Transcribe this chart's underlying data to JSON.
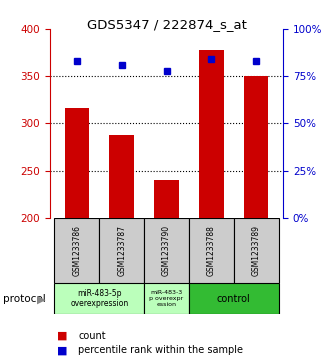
{
  "title": "GDS5347 / 222874_s_at",
  "samples": [
    "GSM1233786",
    "GSM1233787",
    "GSM1233790",
    "GSM1233788",
    "GSM1233789"
  ],
  "counts": [
    316,
    288,
    240,
    378,
    350
  ],
  "percentiles": [
    83,
    81,
    78,
    84,
    83
  ],
  "ylim_left": [
    200,
    400
  ],
  "ylim_right": [
    0,
    100
  ],
  "yticks_left": [
    200,
    250,
    300,
    350,
    400
  ],
  "yticks_right": [
    0,
    25,
    50,
    75,
    100
  ],
  "bar_color": "#cc0000",
  "dot_color": "#0000cc",
  "bar_bottom": 200,
  "grid_values": [
    250,
    300,
    350
  ],
  "legend_count_label": "count",
  "legend_percentile_label": "percentile rank within the sample",
  "sample_box_color": "#cccccc",
  "tick_color_left": "#cc0000",
  "tick_color_right": "#0000cc",
  "proto_group0_color": "#bbffbb",
  "proto_group1_color": "#bbffbb",
  "proto_group2_color": "#33bb33"
}
